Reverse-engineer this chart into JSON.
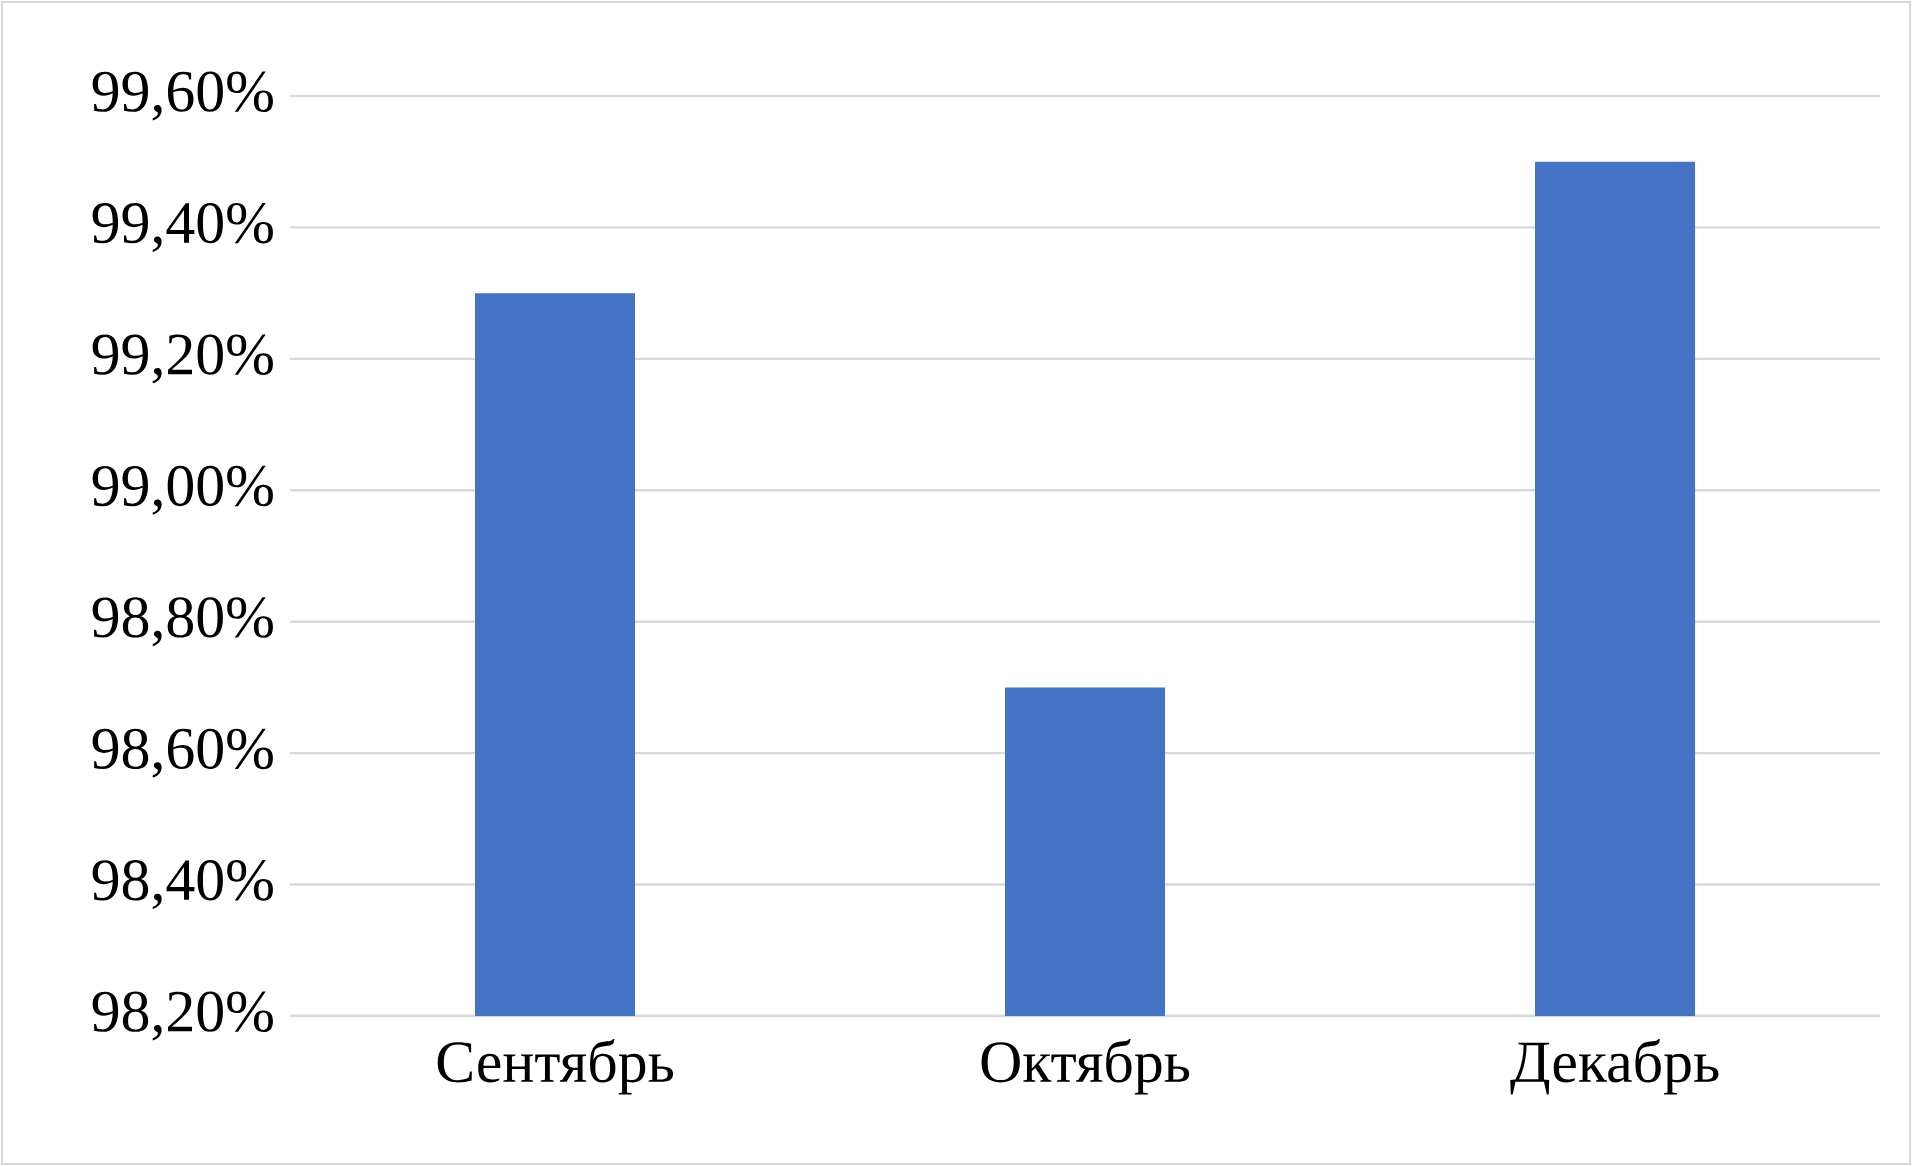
{
  "chart_data": {
    "type": "bar",
    "categories": [
      "Сентябрь",
      "Октябрь",
      "Декабрь"
    ],
    "values": [
      99.3,
      98.7,
      99.5
    ],
    "color": "#4472c4",
    "ylim": [
      98.2,
      99.6
    ],
    "yticks": [
      {
        "value": 98.2,
        "label": "98,20%"
      },
      {
        "value": 98.4,
        "label": "98,40%"
      },
      {
        "value": 98.6,
        "label": "98,60%"
      },
      {
        "value": 98.8,
        "label": "98,80%"
      },
      {
        "value": 99.0,
        "label": "99,00%"
      },
      {
        "value": 99.2,
        "label": "99,20%"
      },
      {
        "value": 99.4,
        "label": "99,40%"
      },
      {
        "value": 99.6,
        "label": "99,60%"
      }
    ],
    "grid": "y"
  }
}
